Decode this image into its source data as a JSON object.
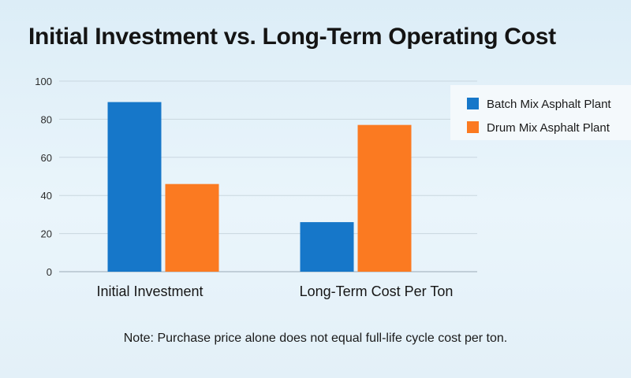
{
  "colors": {
    "series_a": "#1677c9",
    "series_b": "#fb7a21",
    "grid": "#c9d6df"
  },
  "chart_data": {
    "type": "bar",
    "title": "Initial Investment vs. Long-Term Operating Cost",
    "xlabel": "",
    "ylabel": "",
    "categories": [
      "Initial Investment",
      "Long-Term Cost Per Ton"
    ],
    "series": [
      {
        "name": "Batch Mix Asphalt Plant",
        "values": [
          89,
          26
        ]
      },
      {
        "name": "Drum Mix Asphalt Plant",
        "values": [
          46,
          77
        ]
      }
    ],
    "ylim": [
      0,
      100
    ],
    "yticks": [
      0,
      20,
      40,
      60,
      80,
      100
    ],
    "grid": true,
    "legend": "top-right"
  },
  "note": "Note: Purchase price alone does not equal full-life cycle cost per ton."
}
